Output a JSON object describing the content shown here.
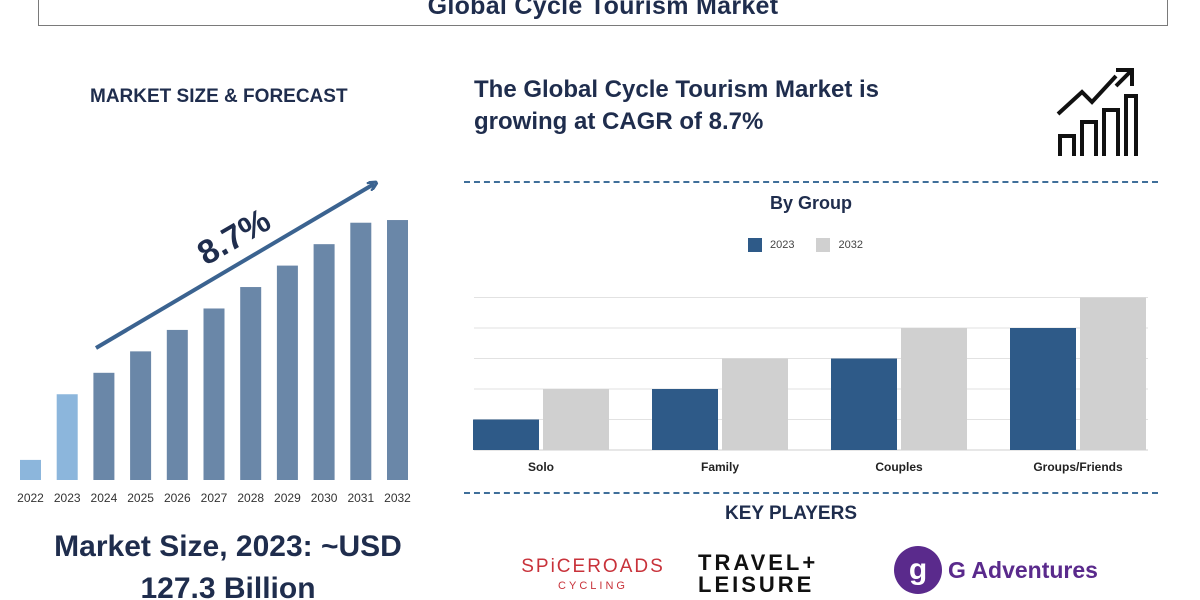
{
  "header": {
    "title": "Global Cycle Tourism Market"
  },
  "left_panel": {
    "label": "MARKET SIZE & FORECAST",
    "cagr_label": "8.7%",
    "market_size_line1": "Market Size, 2023: ~USD",
    "market_size_line2": "127.3 Billion"
  },
  "right_panel": {
    "headline_line1": "The Global Cycle Tourism Market is",
    "headline_line2": "growing at CAGR of 8.7%",
    "growth_icon": "bar-growth-arrow-icon"
  },
  "key_players": {
    "title": "KEY PLAYERS",
    "spiceroads_main": "SPiCEROADS",
    "spiceroads_sub": "CYCLING",
    "travel_leisure_line1": "TRAVEL+",
    "travel_leisure_line2": "LEISURE",
    "g_adventures_mark": "g",
    "g_adventures_name": "G Adventures"
  },
  "colors": {
    "navy_text": "#1f2d4d",
    "bar_light": "#8cb6dc",
    "bar_steel": "#6a87a8",
    "arrow": "#3b6390",
    "series_2023": "#2e5a88",
    "series_2032": "#d0d0d0",
    "dash": "#3f6f9a"
  },
  "chart_data": [
    {
      "type": "bar",
      "categories": [
        "2022",
        "2023",
        "2024",
        "2025",
        "2026",
        "2027",
        "2028",
        "2029",
        "2030",
        "2031",
        "2032"
      ],
      "values": [
        7.5,
        32,
        40,
        48,
        56,
        64,
        72,
        80,
        88,
        96,
        97
      ],
      "ylim": [
        0,
        100
      ],
      "annotation": "8.7%",
      "title": "",
      "xlabel": "",
      "ylabel": ""
    },
    {
      "type": "bar",
      "title": "By Group",
      "categories": [
        "Solo",
        "Family",
        "Couples",
        "Groups/Friends"
      ],
      "series": [
        {
          "name": "2023",
          "values": [
            1,
            2,
            3,
            4
          ]
        },
        {
          "name": "2032",
          "values": [
            2,
            3,
            4,
            5
          ]
        }
      ],
      "ylim": [
        0,
        6
      ],
      "grid": true,
      "legend": "top-center",
      "xlabel": "",
      "ylabel": ""
    }
  ]
}
